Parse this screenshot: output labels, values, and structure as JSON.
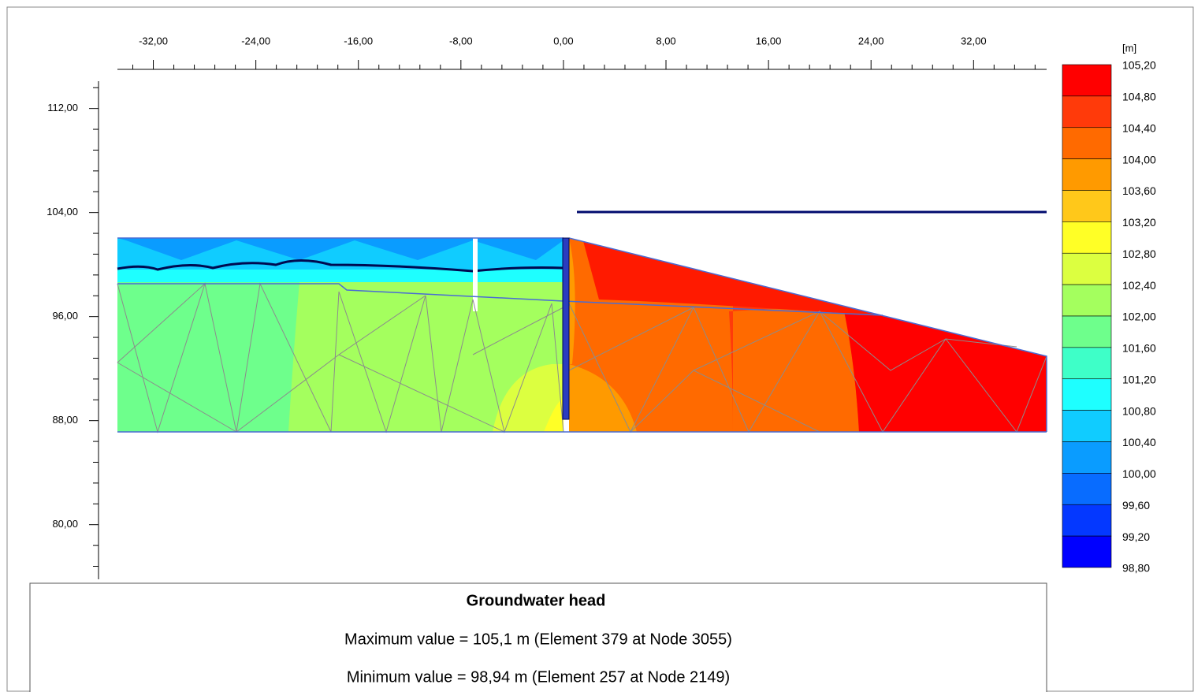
{
  "x_axis": {
    "xlim": [
      -34.8,
      37.7
    ],
    "ticks": [
      {
        "value": -32,
        "label": "-32,00"
      },
      {
        "value": -24,
        "label": "-24,00"
      },
      {
        "value": -16,
        "label": "-16,00"
      },
      {
        "value": -8,
        "label": "-8,00"
      },
      {
        "value": 0,
        "label": "0,00"
      },
      {
        "value": 8,
        "label": "8,00"
      },
      {
        "value": 16,
        "label": "16,00"
      },
      {
        "value": 24,
        "label": "24,00"
      },
      {
        "value": 32,
        "label": "32,00"
      }
    ]
  },
  "y_axis": {
    "ylim": [
      75.8,
      114.1
    ],
    "ticks": [
      {
        "value": 112,
        "label": "112,00"
      },
      {
        "value": 104,
        "label": "104,00"
      },
      {
        "value": 96,
        "label": "96,00"
      },
      {
        "value": 88,
        "label": "88,00"
      },
      {
        "value": 80,
        "label": "80,00"
      }
    ]
  },
  "legend": {
    "unit": "[m]",
    "levels": [
      {
        "value": 105.2,
        "label": "105,20"
      },
      {
        "value": 104.8,
        "label": "104,80"
      },
      {
        "value": 104.4,
        "label": "104,40"
      },
      {
        "value": 104.0,
        "label": "104,00"
      },
      {
        "value": 103.6,
        "label": "103,60"
      },
      {
        "value": 103.2,
        "label": "103,20"
      },
      {
        "value": 102.8,
        "label": "102,80"
      },
      {
        "value": 102.4,
        "label": "102,40"
      },
      {
        "value": 102.0,
        "label": "102,00"
      },
      {
        "value": 101.6,
        "label": "101,60"
      },
      {
        "value": 101.2,
        "label": "101,20"
      },
      {
        "value": 100.8,
        "label": "100,80"
      },
      {
        "value": 100.4,
        "label": "100,40"
      },
      {
        "value": 100.0,
        "label": "100,00"
      },
      {
        "value": 99.6,
        "label": "99,60"
      },
      {
        "value": 99.2,
        "label": "99,20"
      },
      {
        "value": 98.8,
        "label": "98,80"
      }
    ],
    "colors": [
      "#ff0000",
      "#ff3a0a",
      "#ff6a00",
      "#ff9a00",
      "#ffc81a",
      "#ffff26",
      "#dcff40",
      "#a4ff5e",
      "#6eff8c",
      "#3effc8",
      "#1effff",
      "#10ccff",
      "#0a9cff",
      "#086cff",
      "#0438ff",
      "#0000ff"
    ]
  },
  "info": {
    "title": "Groundwater head",
    "maximum": "Maximum value = 105,1 m (Element 379 at Node 3055)",
    "minimum": "Minimum value = 98,94 m (Element 257 at Node 2149)"
  }
}
